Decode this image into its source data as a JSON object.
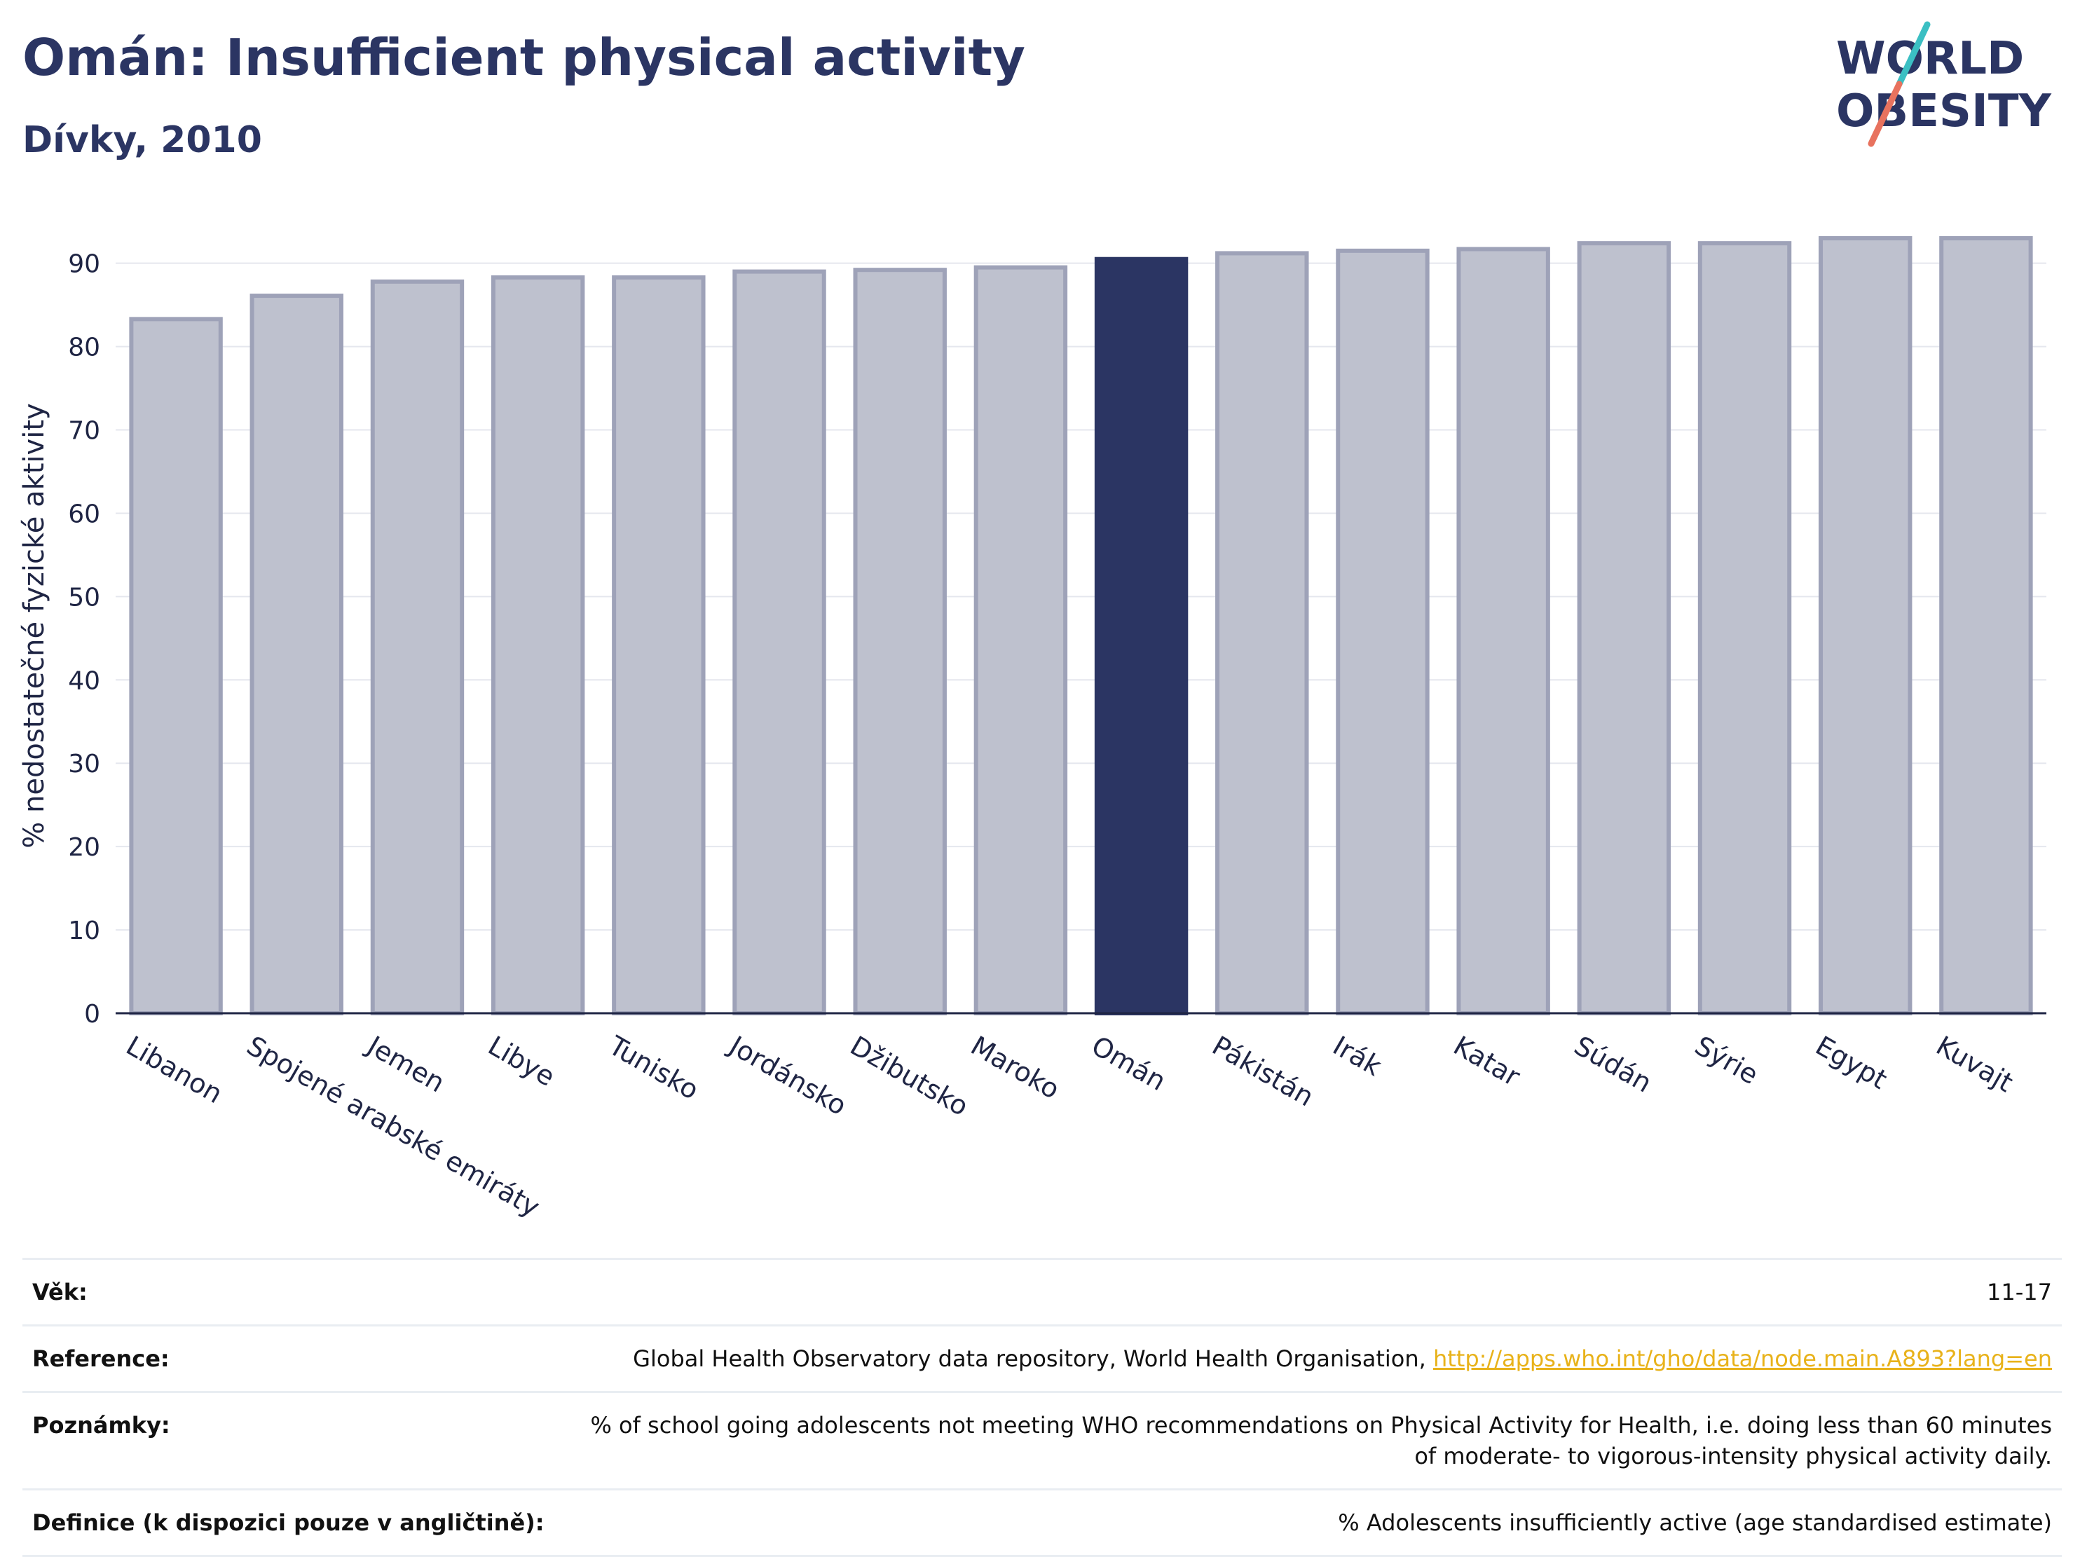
{
  "header": {
    "title": "Omán: Insufficient physical activity",
    "subtitle": "Dívky, 2010"
  },
  "logo": {
    "line1": "WORLD",
    "line2": "OBESITY",
    "colors": {
      "text": "#2b3563",
      "slash_top": "#3bbfc3",
      "slash_bottom": "#e8725e"
    }
  },
  "chart_data": {
    "type": "bar",
    "ylabel": "% nedostatečné fyzické aktivity",
    "xlabel": "",
    "ylim": [
      0,
      93
    ],
    "yticks": [
      0,
      10,
      20,
      30,
      40,
      50,
      60,
      70,
      80,
      90
    ],
    "grid": true,
    "highlight": "Omán",
    "colors": {
      "default": "#bec1ce",
      "default_border": "#9ea2b8",
      "highlight": "#2b3563",
      "grid": "#e5e7ee"
    },
    "categories": [
      "Libanon",
      "Spojené arabské emiráty",
      "Jemen",
      "Libye",
      "Tunisko",
      "Jordánsko",
      "Džibutsko",
      "Maroko",
      "Omán",
      "Pákistán",
      "Irák",
      "Katar",
      "Súdán",
      "Sýrie",
      "Egypt",
      "Kuvajt"
    ],
    "values": [
      83.3,
      86.1,
      87.8,
      88.3,
      88.3,
      89.0,
      89.2,
      89.5,
      90.5,
      91.2,
      91.5,
      91.7,
      92.4,
      92.4,
      93.0,
      93.0
    ]
  },
  "meta": [
    {
      "label": "Věk:",
      "value": "11-17"
    },
    {
      "label": "Reference:",
      "value": "Global Health Observatory data repository, World Health Organisation, ",
      "link": "http://apps.who.int/gho/data/node.main.A893?lang=en"
    },
    {
      "label": "Poznámky:",
      "value": "% of school going adolescents not meeting WHO recommendations on Physical Activity for Health, i.e. doing less than 60 minutes of moderate- to vigorous-intensity physical activity daily."
    },
    {
      "label": "Definice (k dispozici pouze v angličtině):",
      "value": "% Adolescents insufficiently active (age standardised estimate)"
    }
  ]
}
